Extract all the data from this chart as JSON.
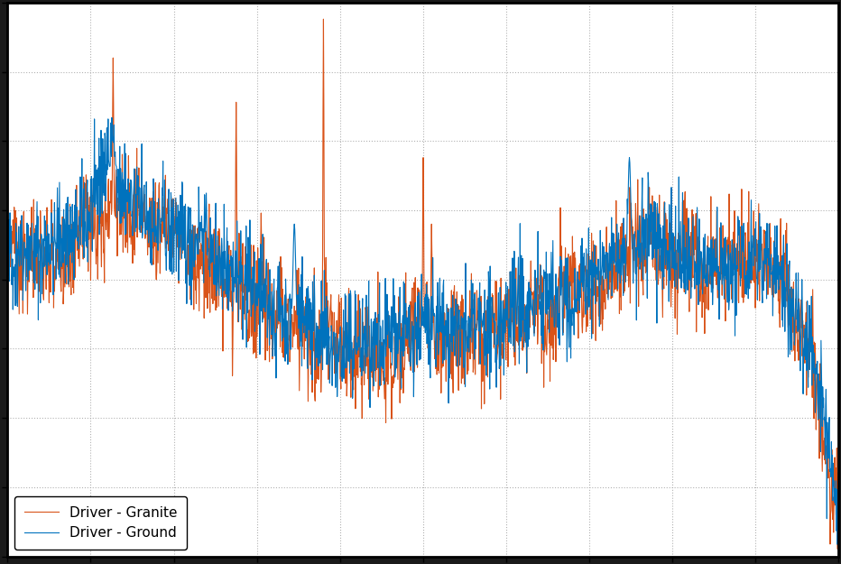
{
  "title": "",
  "xlabel": "",
  "ylabel": "",
  "legend": [
    "Driver - Ground",
    "Driver - Granite"
  ],
  "line_colors": [
    "#0072BD",
    "#D95319"
  ],
  "line_width": 0.8,
  "background_color": "#FFFFFF",
  "figure_background": "#1A1A1A",
  "grid_color": "#AAAAAA",
  "seed": 42,
  "n_points": 2000
}
